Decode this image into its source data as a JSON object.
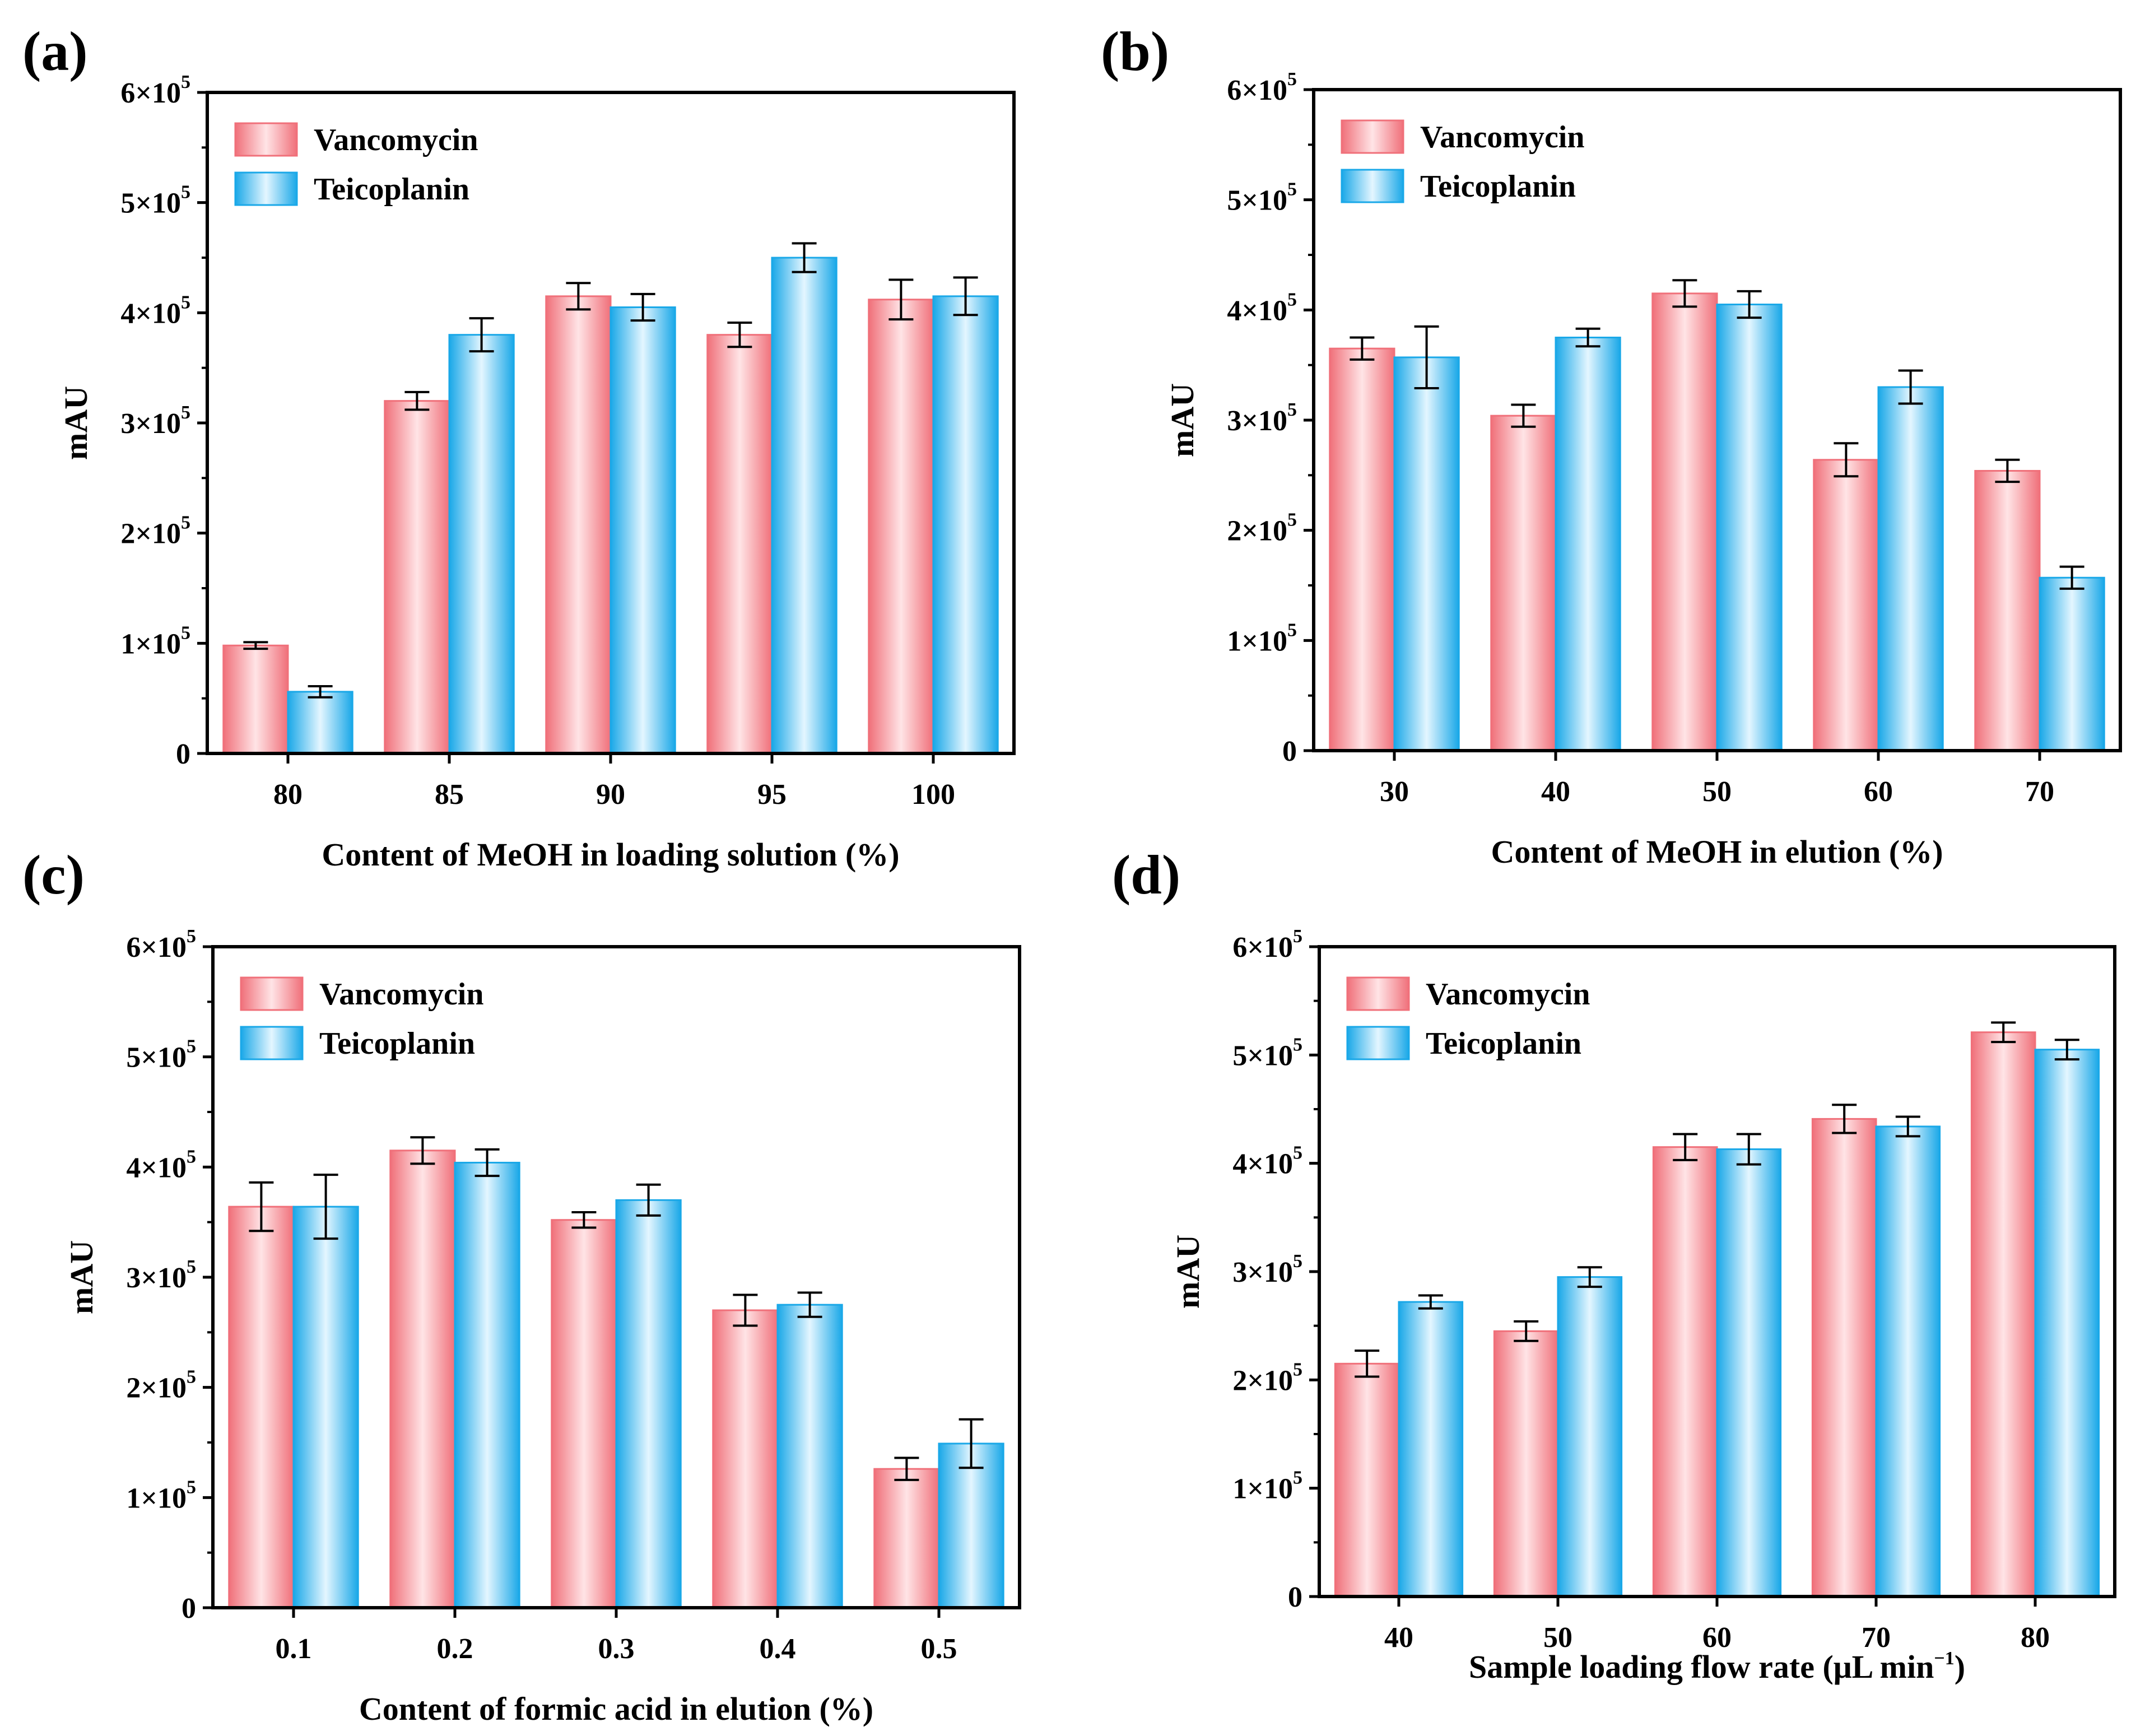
{
  "series_colors": {
    "Vancomycin": {
      "edge": "#f0707a",
      "mid": "#ffe4e6"
    },
    "Teicoplanin": {
      "edge": "#1aa8e8",
      "mid": "#e4f6ff"
    }
  },
  "chart_data": [
    {
      "panel": "(a)",
      "type": "bar",
      "categories": [
        "80",
        "85",
        "90",
        "95",
        "100"
      ],
      "series": [
        {
          "name": "Vancomycin",
          "values": [
            98000,
            320000,
            415000,
            380000,
            412000
          ],
          "errors": [
            3000,
            8000,
            12000,
            11000,
            18000
          ]
        },
        {
          "name": "Teicoplanin",
          "values": [
            56000,
            380000,
            405000,
            450000,
            415000
          ],
          "errors": [
            5000,
            15000,
            12000,
            13000,
            17000
          ]
        }
      ],
      "xlabel": "Content of MeOH in loading solution (%)",
      "ylabel": "mAU",
      "ylim": [
        0,
        600000
      ],
      "yticks": [
        {
          "label": "0"
        },
        {
          "label": "1×10",
          "exp": "5"
        },
        {
          "label": "2×10",
          "exp": "5"
        },
        {
          "label": "3×10",
          "exp": "5"
        },
        {
          "label": "4×10",
          "exp": "5"
        },
        {
          "label": "5×10",
          "exp": "5"
        },
        {
          "label": "6×10",
          "exp": "5"
        }
      ],
      "legend": [
        "Vancomycin",
        "Teicoplanin"
      ]
    },
    {
      "panel": "(b)",
      "type": "bar",
      "categories": [
        "30",
        "40",
        "50",
        "60",
        "70"
      ],
      "series": [
        {
          "name": "Vancomycin",
          "values": [
            365000,
            304000,
            415000,
            264000,
            254000
          ],
          "errors": [
            10000,
            10000,
            12000,
            15000,
            10000
          ]
        },
        {
          "name": "Teicoplanin",
          "values": [
            357000,
            375000,
            405000,
            330000,
            157000
          ],
          "errors": [
            28000,
            8000,
            12000,
            15000,
            10000
          ]
        }
      ],
      "xlabel": "Content of MeOH in elution (%)",
      "ylabel": "mAU",
      "ylim": [
        0,
        600000
      ],
      "yticks": [
        {
          "label": "0"
        },
        {
          "label": "1×10",
          "exp": "5"
        },
        {
          "label": "2×10",
          "exp": "5"
        },
        {
          "label": "3×10",
          "exp": "5"
        },
        {
          "label": "4×10",
          "exp": "5"
        },
        {
          "label": "5×10",
          "exp": "5"
        },
        {
          "label": "6×10",
          "exp": "5"
        }
      ],
      "legend": [
        "Vancomycin",
        "Teicoplanin"
      ]
    },
    {
      "panel": "(c)",
      "type": "bar",
      "categories": [
        "0.1",
        "0.2",
        "0.3",
        "0.4",
        "0.5"
      ],
      "series": [
        {
          "name": "Vancomycin",
          "values": [
            364000,
            415000,
            352000,
            270000,
            126000
          ],
          "errors": [
            22000,
            12000,
            7000,
            14000,
            10000
          ]
        },
        {
          "name": "Teicoplanin",
          "values": [
            364000,
            404000,
            370000,
            275000,
            149000
          ],
          "errors": [
            29000,
            12000,
            14000,
            11000,
            22000
          ]
        }
      ],
      "xlabel": "Content of formic acid in elution (%)",
      "ylabel": "mAU",
      "ylim": [
        0,
        600000
      ],
      "yticks": [
        {
          "label": "0"
        },
        {
          "label": "1×10",
          "exp": "5"
        },
        {
          "label": "2×10",
          "exp": "5"
        },
        {
          "label": "3×10",
          "exp": "5"
        },
        {
          "label": "4×10",
          "exp": "5"
        },
        {
          "label": "5×10",
          "exp": "5"
        },
        {
          "label": "6×10",
          "exp": "5"
        }
      ],
      "legend": [
        "Vancomycin",
        "Teicoplanin"
      ]
    },
    {
      "panel": "(d)",
      "type": "bar",
      "categories": [
        "40",
        "50",
        "60",
        "70",
        "80"
      ],
      "series": [
        {
          "name": "Vancomycin",
          "values": [
            215000,
            245000,
            415000,
            441000,
            521000
          ],
          "errors": [
            12000,
            9000,
            12000,
            13000,
            9000
          ]
        },
        {
          "name": "Teicoplanin",
          "values": [
            272000,
            295000,
            413000,
            434000,
            505000
          ],
          "errors": [
            6000,
            9000,
            14000,
            9000,
            9000
          ]
        }
      ],
      "xlabel": "Sample loading flow rate (μL min",
      "xlabel_sup": "−1",
      "xlabel_tail": ")",
      "ylabel": "mAU",
      "ylim": [
        0,
        600000
      ],
      "yticks": [
        {
          "label": "0"
        },
        {
          "label": "1×10",
          "exp": "5"
        },
        {
          "label": "2×10",
          "exp": "5"
        },
        {
          "label": "3×10",
          "exp": "5"
        },
        {
          "label": "4×10",
          "exp": "5"
        },
        {
          "label": "5×10",
          "exp": "5"
        },
        {
          "label": "6×10",
          "exp": "5"
        }
      ],
      "legend": [
        "Vancomycin",
        "Teicoplanin"
      ]
    }
  ]
}
